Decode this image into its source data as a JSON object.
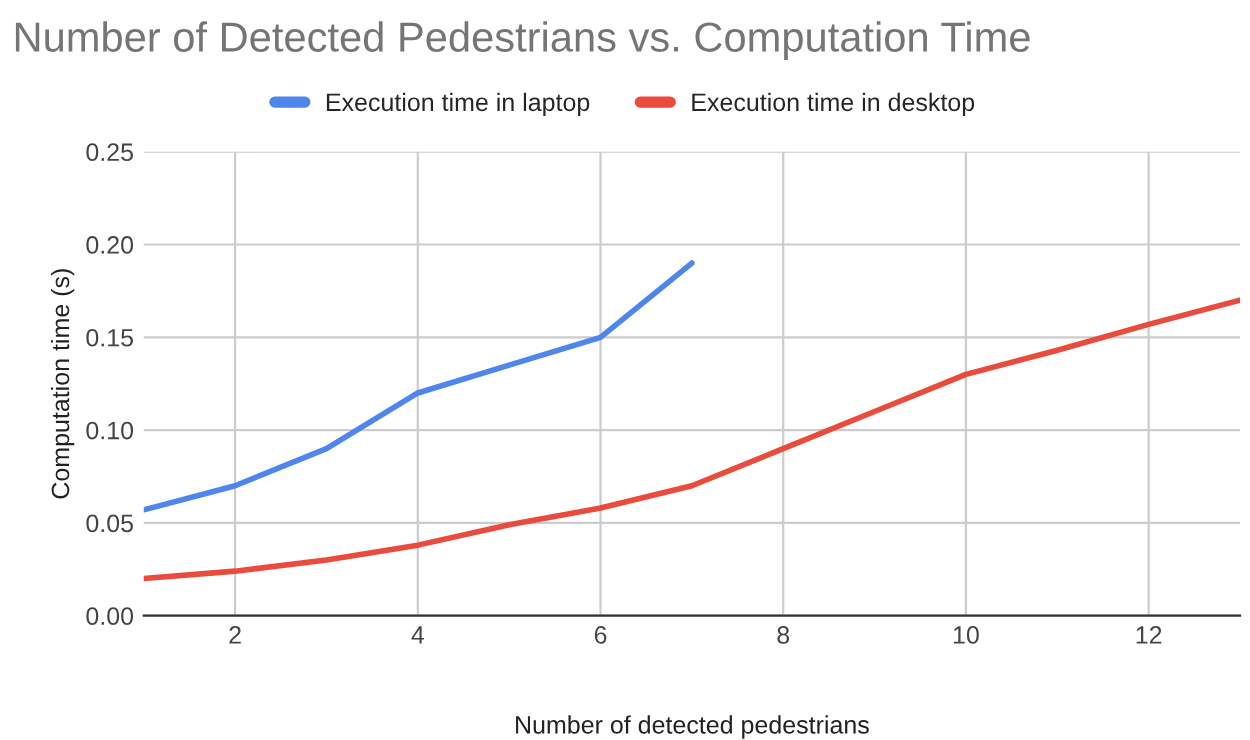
{
  "chart_data": {
    "type": "line",
    "title": "Number of Detected Pedestrians vs. Computation Time",
    "xlabel": "Number of detected pedestrians",
    "ylabel": "Computation time (s)",
    "x": [
      1,
      2,
      3,
      4,
      5,
      6,
      7,
      8,
      9,
      10,
      11,
      12,
      13
    ],
    "series": [
      {
        "name": "Execution time in laptop",
        "color": "#4f86ec",
        "x": [
          1,
          2,
          3,
          4,
          5,
          6,
          7
        ],
        "values": [
          0.057,
          0.07,
          0.09,
          0.12,
          0.135,
          0.15,
          0.19
        ]
      },
      {
        "name": "Execution time in desktop",
        "color": "#e94b3c",
        "values": [
          0.02,
          0.024,
          0.03,
          0.038,
          0.049,
          0.058,
          0.07,
          0.09,
          0.11,
          0.13,
          0.143,
          0.157,
          0.17
        ]
      }
    ],
    "xlim": [
      1,
      13
    ],
    "xticks": [
      2,
      4,
      6,
      8,
      10,
      12
    ],
    "ylim": [
      0,
      0.25
    ],
    "yticks": [
      {
        "value": 0,
        "label": "0.00"
      },
      {
        "value": 0.05,
        "label": "0.05"
      },
      {
        "value": 0.1,
        "label": "0.10"
      },
      {
        "value": 0.15,
        "label": "0.15"
      },
      {
        "value": 0.2,
        "label": "0.20"
      },
      {
        "value": 0.25,
        "label": "0.25"
      }
    ],
    "grid": true,
    "legend": "top",
    "marker": "none",
    "line_style": "solid"
  }
}
